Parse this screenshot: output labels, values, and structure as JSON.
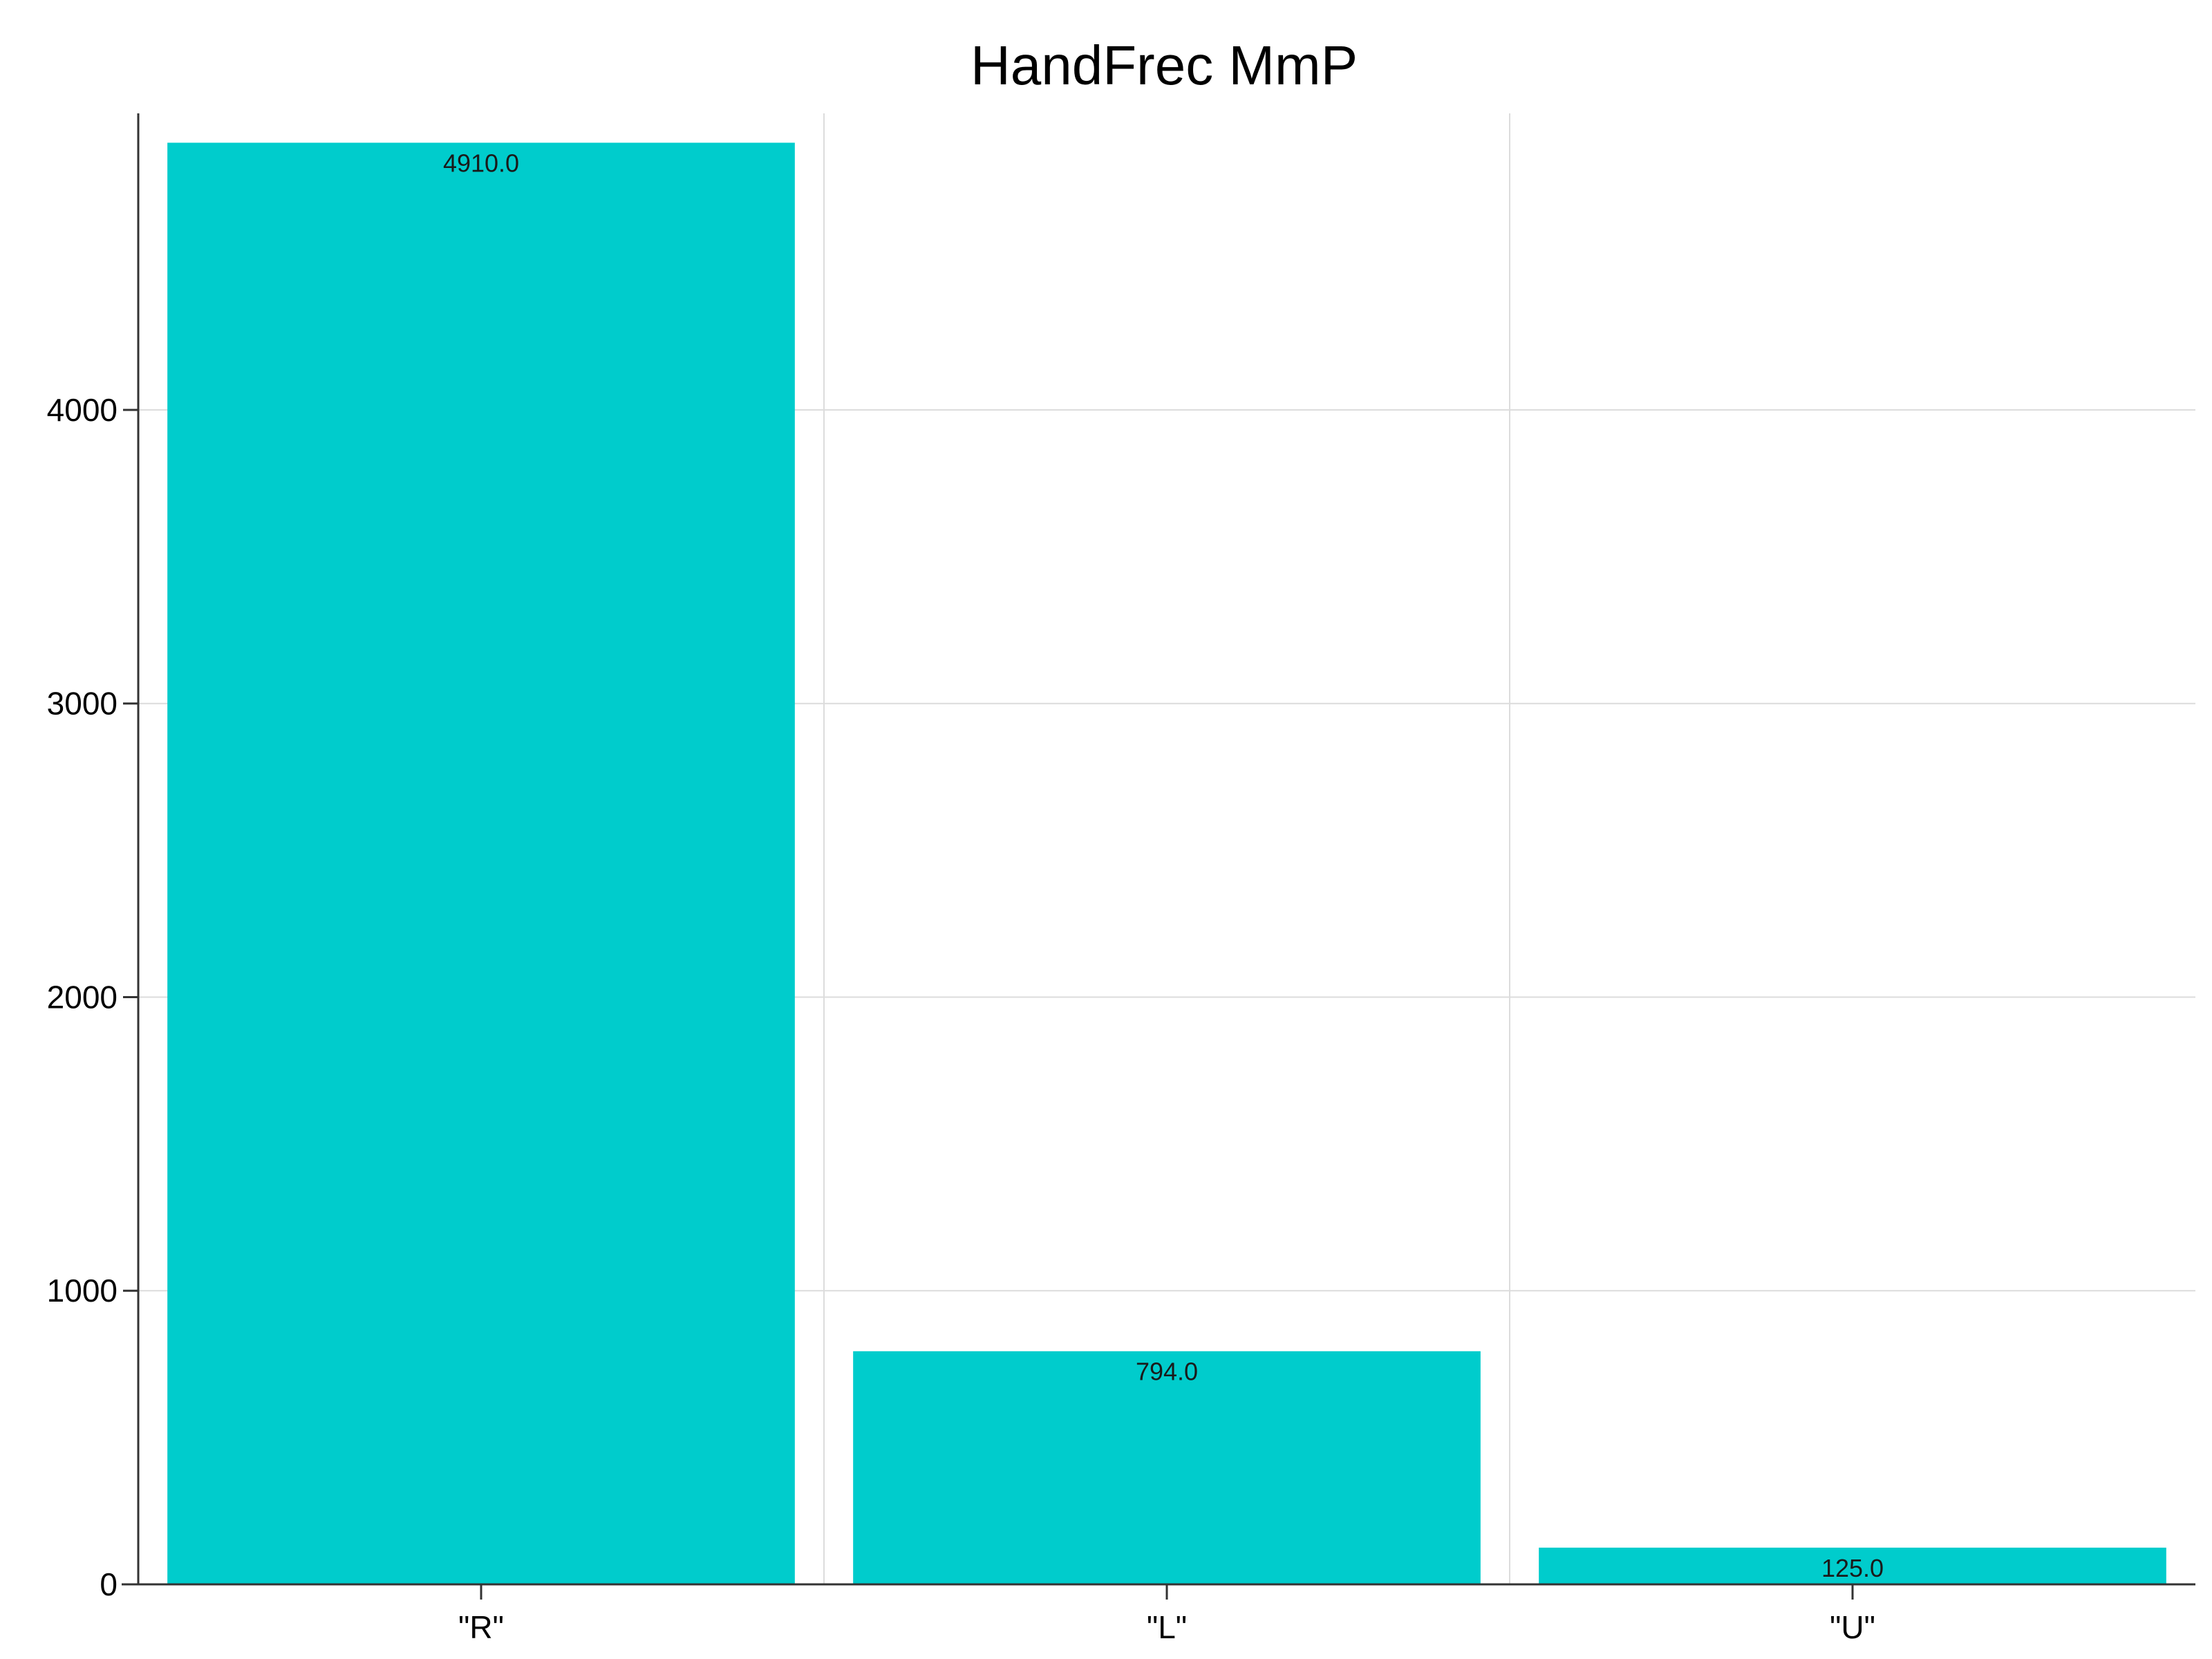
{
  "chart_data": {
    "type": "bar",
    "title": "HandFrec MmP",
    "xlabel": "",
    "ylabel": "",
    "categories": [
      "\"R\"",
      "\"L\"",
      "\"U\""
    ],
    "values": [
      4910.0,
      794.0,
      125.0
    ],
    "data_labels": [
      "4910.0",
      "794.0",
      "125.0"
    ],
    "ylim": [
      0,
      5010
    ],
    "yticks": [
      0,
      1000,
      2000,
      3000,
      4000
    ],
    "ytick_labels": [
      "0",
      "1000",
      "2000",
      "3000",
      "4000"
    ],
    "bar_color": "#00cccc",
    "grid": true,
    "legend": "none"
  }
}
